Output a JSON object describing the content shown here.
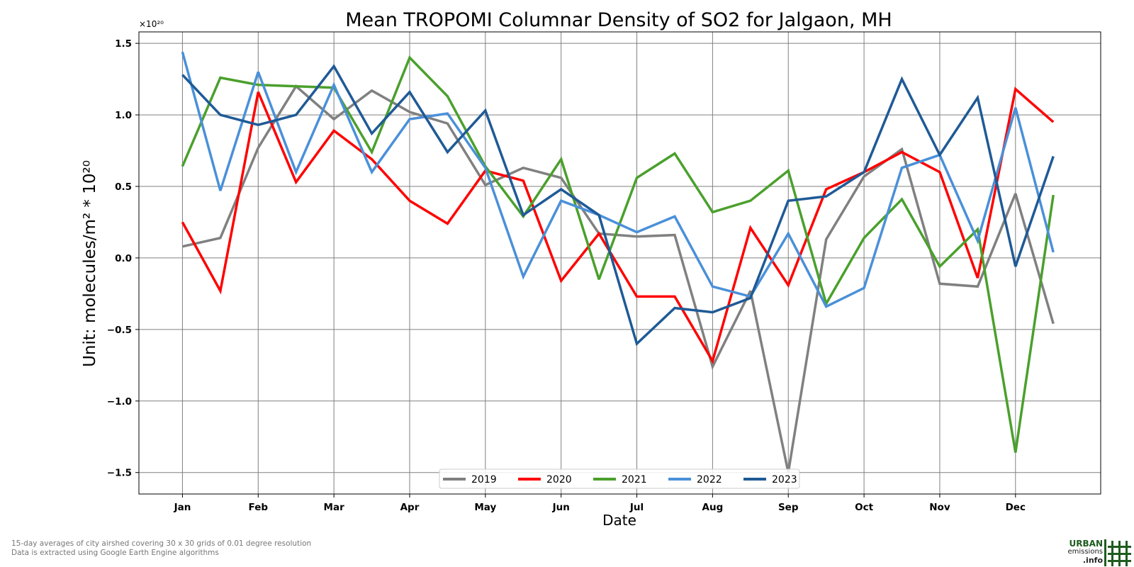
{
  "chart_data": {
    "type": "line",
    "title": "Mean TROPOMI Columnar Density of SO2 for Jalgaon, MH",
    "xlabel": "Date",
    "ylabel": "Unit: molecules/m² * 10²⁰",
    "y_scale_label": "×10²⁰",
    "ylim": [
      -1.65,
      1.58
    ],
    "y_ticks": [
      {
        "value": 1.5,
        "label": "1.5"
      },
      {
        "value": 1.0,
        "label": "1.0"
      },
      {
        "value": 0.5,
        "label": "0.5"
      },
      {
        "value": 0.0,
        "label": "0.0"
      },
      {
        "value": -0.5,
        "label": "−0.5"
      },
      {
        "value": -1.0,
        "label": "−1.0"
      },
      {
        "value": -1.5,
        "label": "−1.5"
      }
    ],
    "x_ticks": [
      {
        "value": 0,
        "label": "Jan"
      },
      {
        "value": 2,
        "label": "Feb"
      },
      {
        "value": 4,
        "label": "Mar"
      },
      {
        "value": 6,
        "label": "Apr"
      },
      {
        "value": 8,
        "label": "May"
      },
      {
        "value": 10,
        "label": "Jun"
      },
      {
        "value": 12,
        "label": "Jul"
      },
      {
        "value": 14,
        "label": "Aug"
      },
      {
        "value": 16,
        "label": "Sep"
      },
      {
        "value": 18,
        "label": "Oct"
      },
      {
        "value": 20,
        "label": "Nov"
      },
      {
        "value": 22,
        "label": "Dec"
      }
    ],
    "xlim": [
      -1.15,
      24.25
    ],
    "grid": true,
    "legend": "bottom-center",
    "series": [
      {
        "name": "2019",
        "color": "#808080",
        "values": [
          0.08,
          0.14,
          0.77,
          1.2,
          0.97,
          1.17,
          1.02,
          0.94,
          0.51,
          0.63,
          0.56,
          0.17,
          0.15,
          0.16,
          -0.76,
          -0.23,
          -1.5,
          0.13,
          0.57,
          0.76,
          -0.18,
          -0.2,
          0.45,
          -0.46
        ]
      },
      {
        "name": "2020",
        "color": "#ff0000",
        "values": [
          0.25,
          -0.23,
          1.16,
          0.53,
          0.89,
          0.69,
          0.4,
          0.24,
          0.61,
          0.54,
          -0.16,
          0.17,
          -0.27,
          -0.27,
          -0.72,
          0.21,
          -0.19,
          0.48,
          0.6,
          0.74,
          0.6,
          -0.14,
          1.18,
          0.95
        ]
      },
      {
        "name": "2021",
        "color": "#4aa02c",
        "values": [
          0.64,
          1.26,
          1.21,
          1.2,
          1.19,
          0.74,
          1.4,
          1.13,
          0.64,
          0.29,
          0.69,
          -0.15,
          0.56,
          0.73,
          0.32,
          0.4,
          0.61,
          -0.32,
          0.14,
          0.41,
          -0.06,
          0.2,
          -1.36,
          0.44
        ]
      },
      {
        "name": "2022",
        "color": "#4a90d9",
        "values": [
          1.44,
          0.47,
          1.3,
          0.6,
          1.21,
          0.6,
          0.97,
          1.01,
          0.63,
          -0.13,
          0.4,
          0.3,
          0.18,
          0.29,
          -0.2,
          -0.27,
          0.17,
          -0.34,
          -0.21,
          0.63,
          0.72,
          0.12,
          1.05,
          0.04
        ]
      },
      {
        "name": "2023",
        "color": "#1f5a96",
        "values": [
          1.28,
          1.0,
          0.93,
          1.0,
          1.34,
          0.87,
          1.16,
          0.74,
          1.03,
          0.3,
          0.48,
          0.3,
          -0.6,
          -0.35,
          -0.38,
          -0.28,
          0.4,
          0.43,
          0.6,
          1.25,
          0.72,
          1.12,
          -0.06,
          0.71
        ]
      }
    ]
  },
  "footnote": {
    "line1": "15-day averages of city airshed covering 30 x 30 grids of 0.01 degree resolution",
    "line2": "Data is extracted using Google Earth Engine algorithms"
  },
  "logo": {
    "line1": "URBAN",
    "line2": "emissions",
    "line3": ".info"
  }
}
